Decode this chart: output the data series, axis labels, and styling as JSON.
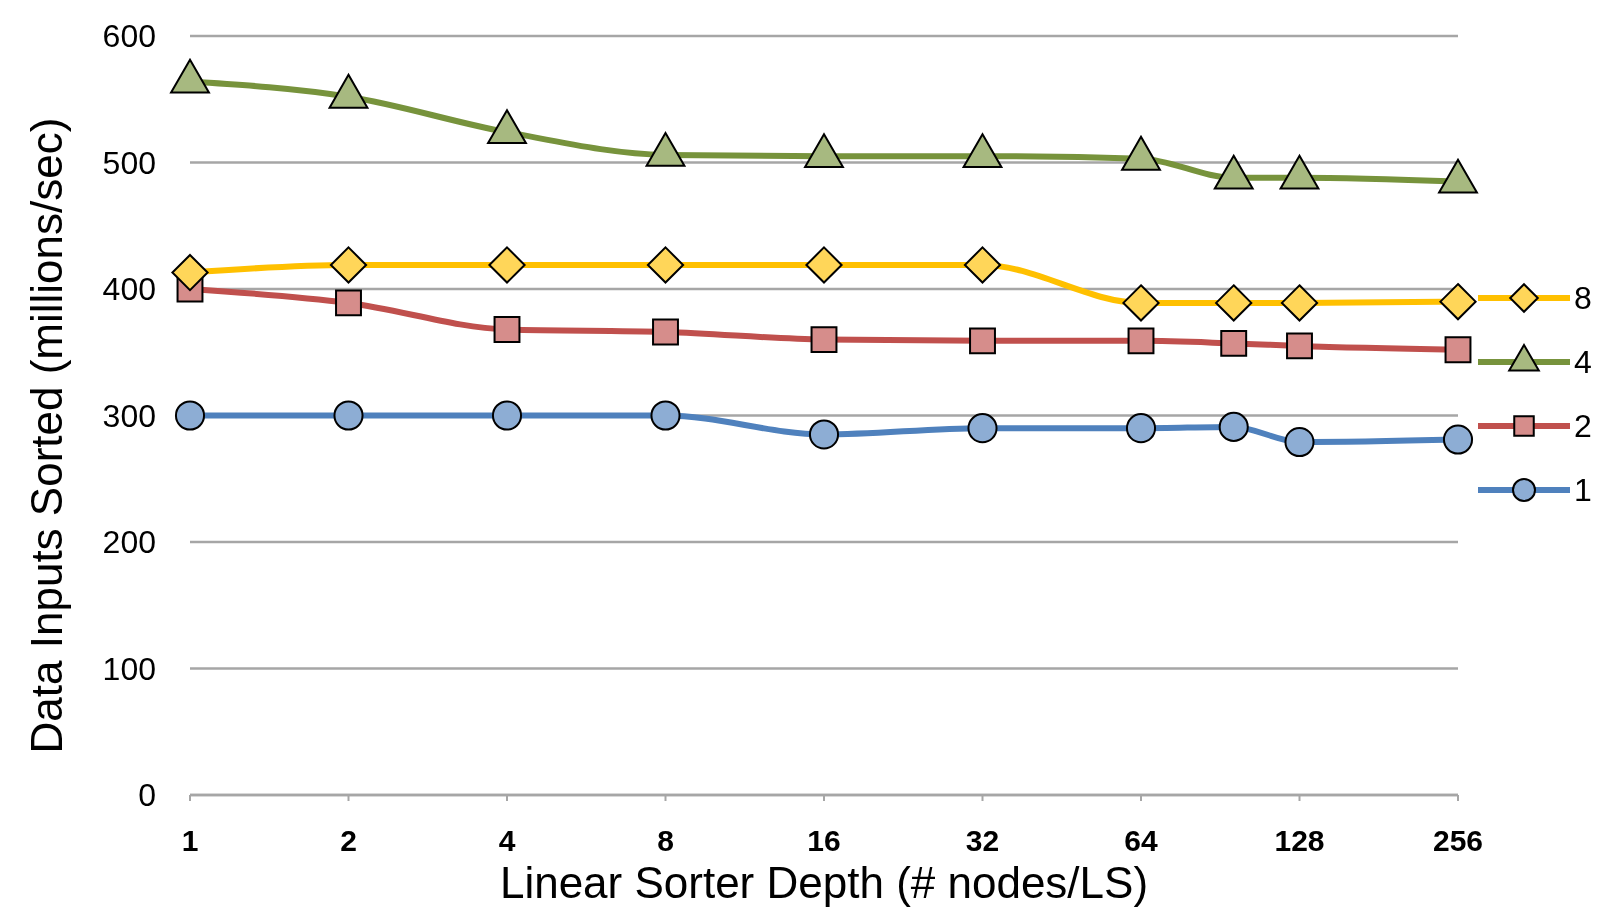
{
  "chart_data": {
    "type": "line",
    "xlabel": "Linear Sorter Depth (# nodes/LS)",
    "ylabel": "Data Inputs Sorted (millions/sec)",
    "x": [
      1,
      2,
      4,
      8,
      16,
      32,
      64,
      96,
      128,
      256
    ],
    "log": "x",
    "xlim": [
      1,
      256
    ],
    "xticks": [
      1,
      2,
      4,
      8,
      16,
      32,
      64,
      128,
      256
    ],
    "ylim": [
      0,
      600
    ],
    "yticks": [
      0,
      100,
      200,
      300,
      400,
      500,
      600
    ],
    "grid": "y",
    "legend": "right",
    "series": [
      {
        "name": "8",
        "color": "#ffc000",
        "marker": "diamond",
        "values": [
          413,
          419,
          419,
          419,
          419,
          419,
          389,
          389,
          389,
          390
        ]
      },
      {
        "name": "4",
        "color": "#77933c",
        "marker": "triangle",
        "values": [
          564,
          552,
          524,
          506,
          505,
          505,
          503,
          488,
          488,
          485
        ]
      },
      {
        "name": "2",
        "color": "#c0504d",
        "marker": "square",
        "values": [
          400,
          389,
          368,
          366,
          360,
          359,
          359,
          357,
          355,
          352
        ]
      },
      {
        "name": "1",
        "color": "#4f81bd",
        "marker": "circle",
        "values": [
          300,
          300,
          300,
          300,
          285,
          290,
          290,
          291,
          279,
          281
        ]
      }
    ]
  }
}
